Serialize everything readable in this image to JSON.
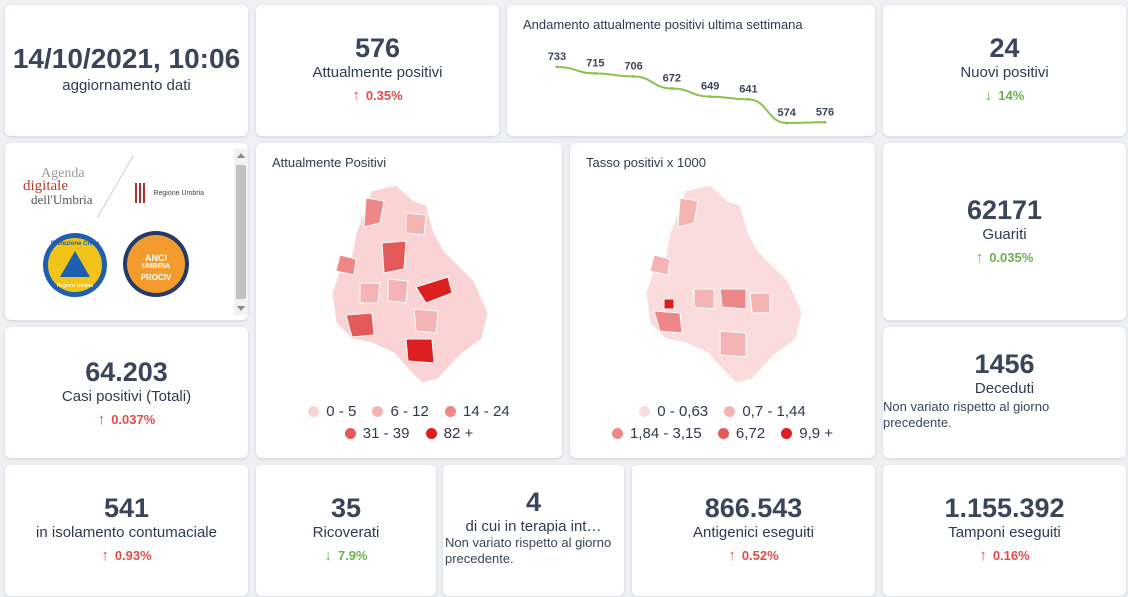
{
  "update": {
    "datetime": "14/10/2021, 10:06",
    "label": "aggiornamento dati"
  },
  "attualmente_positivi": {
    "value": "576",
    "label": "Attualmente positivi",
    "delta": "0.35%",
    "arrow": "↑"
  },
  "andamento": {
    "title": "Andamento attualmente positivi ultima settimana"
  },
  "chart_data": {
    "type": "line",
    "title": "Andamento attualmente positivi ultima settimana",
    "values": [
      733,
      715,
      706,
      672,
      649,
      641,
      574,
      576
    ],
    "data_labels": [
      "733",
      "715",
      "706",
      "672",
      "649",
      "641",
      "574",
      "576"
    ],
    "line_color": "#8ac24a",
    "grid": false
  },
  "nuovi_positivi": {
    "value": "24",
    "label": "Nuovi positivi",
    "delta": "14%",
    "arrow": "↓"
  },
  "logos": {
    "agenda_line1": "Agenda",
    "agenda_line2": "digitale",
    "agenda_line3": "dell'Umbria",
    "regione": "Regione Umbria",
    "protezione_top": "Protezione Civile",
    "protezione_bottom": "Regione Umbria",
    "anci_line1": "ANCI",
    "anci_line2": "UMBRIA",
    "anci_line3": "PROCIV"
  },
  "map_positivi": {
    "title": "Attualmente Positivi",
    "legend": [
      {
        "label": "0 - 5",
        "color": "#fad4d4"
      },
      {
        "label": "6 - 12",
        "color": "#f5b4b4"
      },
      {
        "label": "14 - 24",
        "color": "#ee8888"
      },
      {
        "label": "31 - 39",
        "color": "#e35a5a"
      },
      {
        "label": "82 +",
        "color": "#dd1f1f"
      }
    ]
  },
  "map_tasso": {
    "title": "Tasso positivi x 1000",
    "legend": [
      {
        "label": "0 - 0,63",
        "color": "#fbdcdc"
      },
      {
        "label": "0,7 - 1,44",
        "color": "#f5b4b4"
      },
      {
        "label": "1,84 - 3,15",
        "color": "#ee8888"
      },
      {
        "label": "6,72",
        "color": "#e35a5a"
      },
      {
        "label": "9,9 +",
        "color": "#dd1f1f"
      }
    ]
  },
  "guariti": {
    "value": "62171",
    "label": "Guariti",
    "delta": "0.035%",
    "arrow": "↑"
  },
  "casi_totali": {
    "value": "64.203",
    "label": "Casi positivi (Totali)",
    "delta": "0.037%",
    "arrow": "↑"
  },
  "deceduti": {
    "value": "1456",
    "label": "Deceduti",
    "note": "Non variato rispetto al giorno precedente."
  },
  "isolamento": {
    "value": "541",
    "label": "in isolamento contumaciale",
    "delta": "0.93%",
    "arrow": "↑"
  },
  "ricoverati": {
    "value": "35",
    "label": "Ricoverati",
    "delta": "7.9%",
    "arrow": "↓"
  },
  "terapia": {
    "value": "4",
    "label": "di cui in terapia int…",
    "note": "Non variato rispetto al giorno precedente."
  },
  "antigenici": {
    "value": "866.543",
    "label": "Antigenici eseguiti",
    "delta": "0.52%",
    "arrow": "↑"
  },
  "tamponi": {
    "value": "1.155.392",
    "label": "Tamponi eseguiti",
    "delta": "0.16%",
    "arrow": "↑"
  }
}
